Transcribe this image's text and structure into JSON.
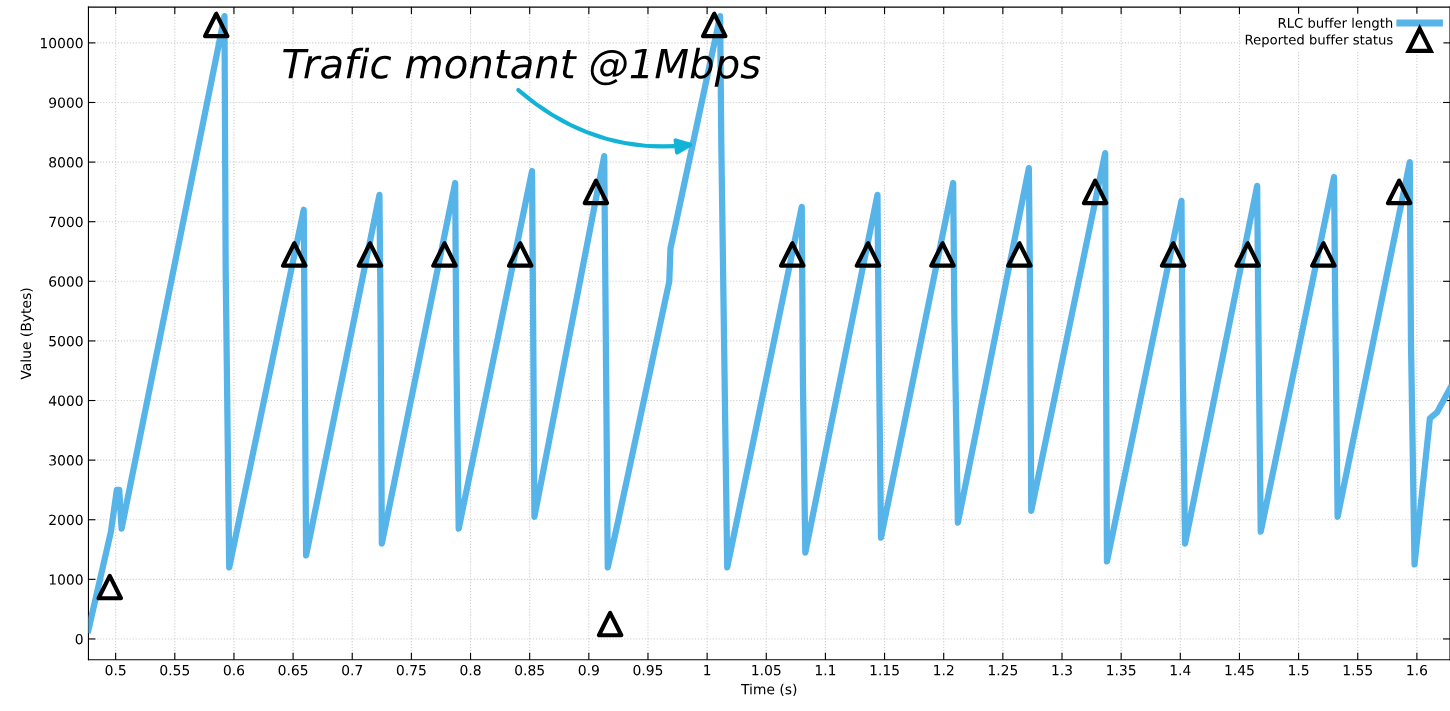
{
  "chart_data": {
    "type": "line",
    "xlabel": "Time (s)",
    "ylabel": "Value (Bytes)",
    "xlim": [
      0.477,
      1.628
    ],
    "ylim": [
      -350,
      10600
    ],
    "xticks": [
      0.5,
      0.55,
      0.6,
      0.65,
      0.7,
      0.75,
      0.8,
      0.85,
      0.9,
      0.95,
      1,
      1.05,
      1.1,
      1.15,
      1.2,
      1.25,
      1.3,
      1.35,
      1.4,
      1.45,
      1.5,
      1.55,
      1.6
    ],
    "yticks": [
      0,
      1000,
      2000,
      3000,
      4000,
      5000,
      6000,
      7000,
      8000,
      9000,
      10000
    ],
    "grid": true,
    "legend": "top right",
    "annotations": [
      {
        "text": "Trafic montant @1Mbps",
        "x": 0.99,
        "y": 8300
      }
    ],
    "series": [
      {
        "name": "RLC buffer length",
        "color": "#56b4e9",
        "marker": "none",
        "line_style": "solid",
        "x": [
          0.477,
          0.496,
          0.501,
          0.503,
          0.505,
          0.592,
          0.593,
          0.596,
          0.659,
          0.66,
          0.661,
          0.723,
          0.724,
          0.725,
          0.787,
          0.788,
          0.79,
          0.852,
          0.853,
          0.854,
          0.913,
          0.914,
          0.916,
          0.92,
          0.925,
          0.968,
          0.969,
          1.011,
          1.012,
          1.017,
          1.08,
          1.081,
          1.083,
          1.144,
          1.145,
          1.147,
          1.208,
          1.209,
          1.212,
          1.272,
          1.273,
          1.274,
          1.3365,
          1.337,
          1.338,
          1.401,
          1.402,
          1.404,
          1.465,
          1.466,
          1.468,
          1.53,
          1.531,
          1.533,
          1.594,
          1.595,
          1.598,
          1.611,
          1.617,
          1.628
        ],
        "values": [
          150,
          1800,
          2500,
          2500,
          1850,
          10450,
          6200,
          1200,
          7200,
          4200,
          1400,
          7450,
          5300,
          1600,
          7650,
          4800,
          1850,
          7850,
          5100,
          2050,
          8100,
          5900,
          1200,
          1550,
          2000,
          6000,
          6550,
          10450,
          8300,
          1200,
          7250,
          4300,
          1450,
          7450,
          5200,
          1700,
          7650,
          5400,
          1950,
          7900,
          5800,
          2150,
          8150,
          5700,
          1300,
          7350,
          4700,
          1600,
          7600,
          5300,
          1800,
          7750,
          5500,
          2050,
          8000,
          5000,
          1250,
          3700,
          3800,
          4200
        ]
      },
      {
        "name": "Reported buffer status",
        "type": "scatter",
        "color": "#000000",
        "marker": "triangle",
        "x": [
          0.495,
          0.585,
          0.651,
          0.715,
          0.778,
          0.842,
          0.906,
          0.918,
          1.006,
          1.072,
          1.136,
          1.199,
          1.264,
          1.328,
          1.394,
          1.457,
          1.521,
          1.585
        ],
        "values": [
          870,
          10300,
          6450,
          6450,
          6450,
          6450,
          7500,
          250,
          10300,
          6450,
          6450,
          6450,
          6450,
          7500,
          6450,
          6450,
          6450,
          7500
        ]
      }
    ]
  }
}
